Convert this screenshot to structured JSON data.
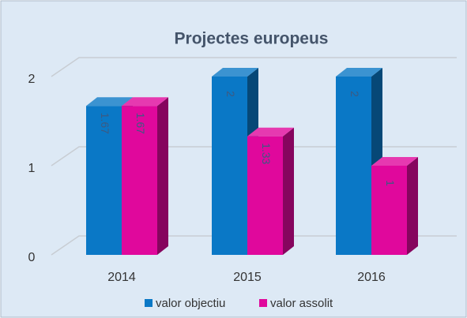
{
  "chart_data": {
    "type": "bar3d",
    "title": "Projectes europeus",
    "categories": [
      "2014",
      "2015",
      "2016"
    ],
    "series": [
      {
        "name": "valor objectiu",
        "color": "#0a78c6",
        "values": [
          1.67,
          2,
          2
        ]
      },
      {
        "name": "valor assolit",
        "color": "#e0089c",
        "values": [
          1.67,
          1.33,
          1
        ]
      }
    ],
    "ylim": [
      0,
      2
    ],
    "yticks": [
      0,
      1,
      2
    ],
    "grid": true,
    "legend": "bottom"
  }
}
